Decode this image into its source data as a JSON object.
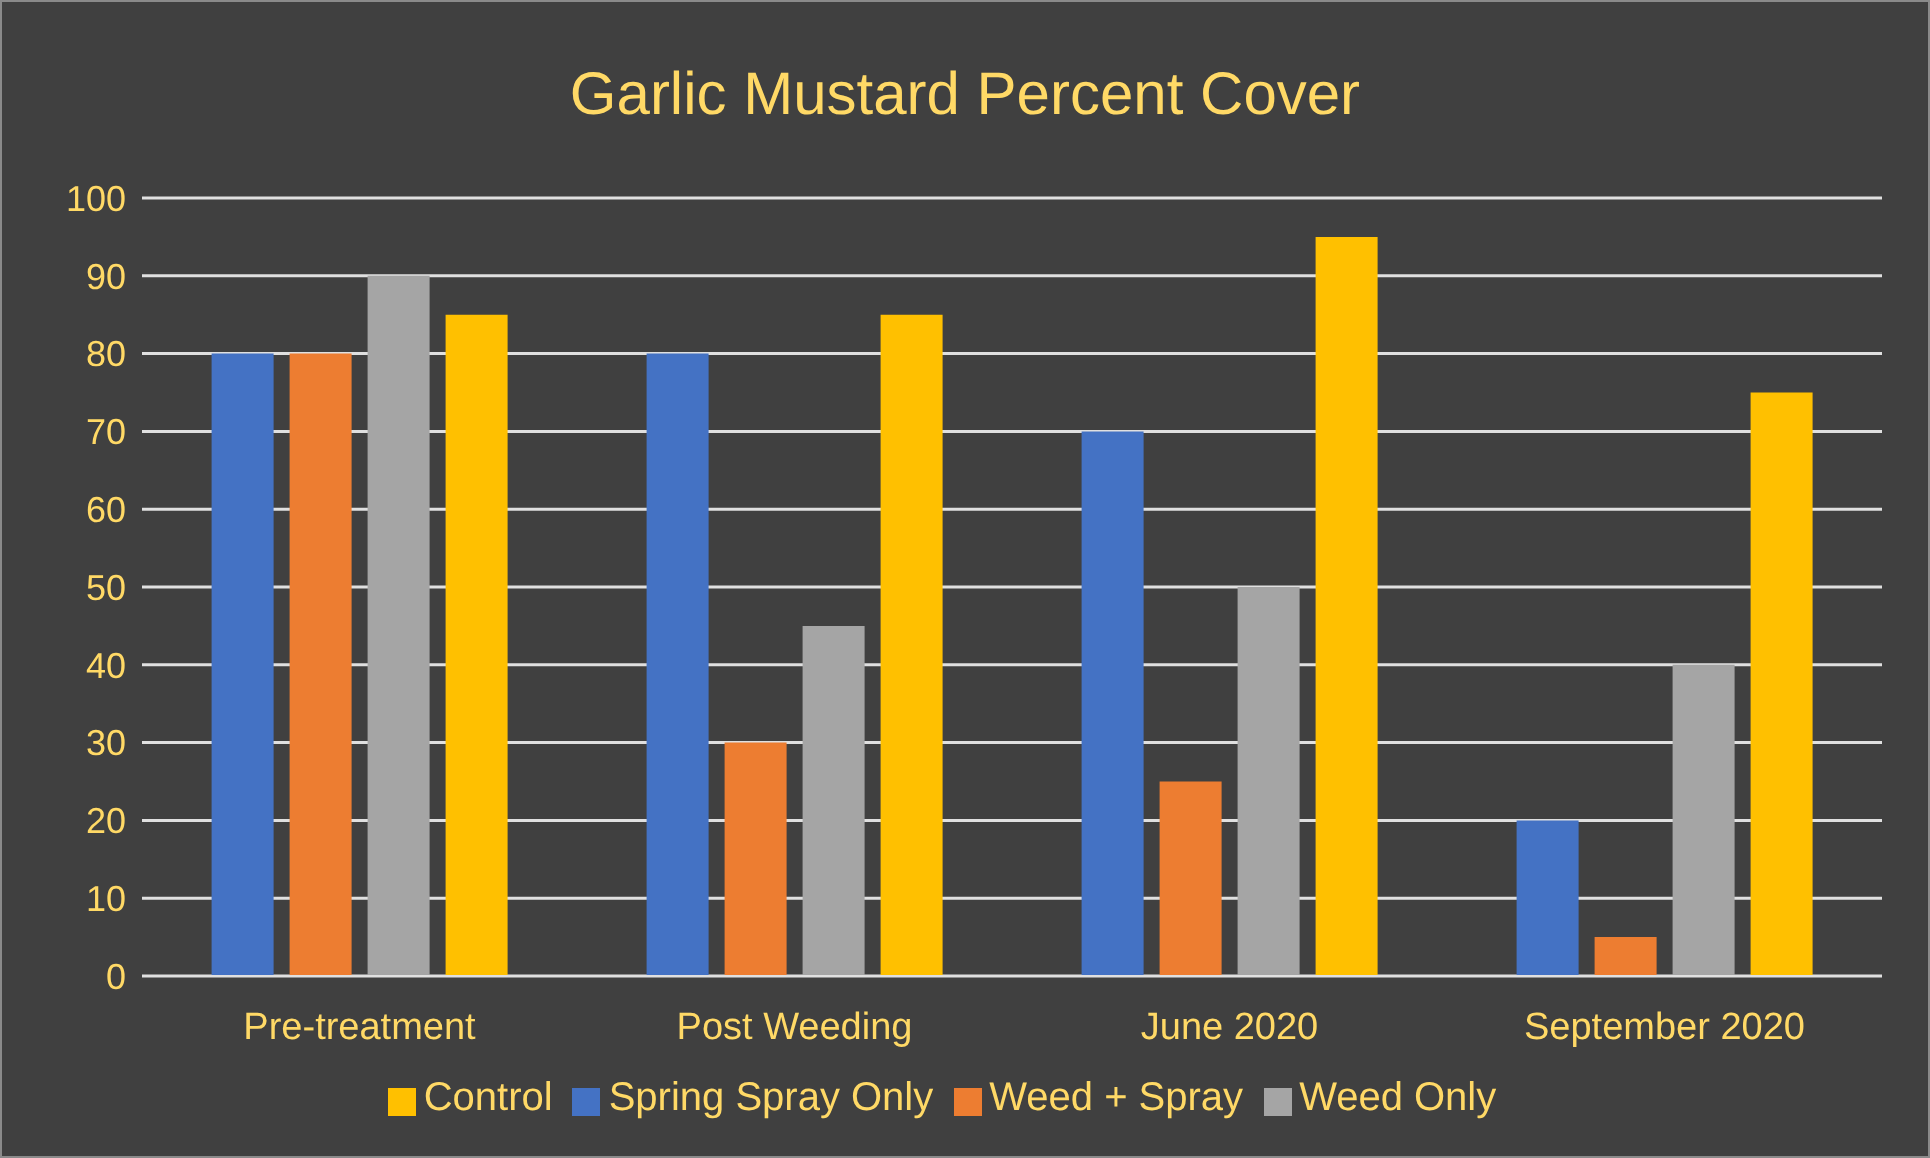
{
  "chart_data": {
    "type": "bar",
    "title": "Garlic Mustard Percent Cover",
    "categories": [
      "Pre-treatment",
      "Post Weeding",
      "June 2020",
      "September 2020"
    ],
    "series": [
      {
        "name": "Spring Spray Only",
        "color": "#4472c4",
        "values": [
          80,
          80,
          70,
          20
        ]
      },
      {
        "name": "Weed + Spray",
        "color": "#ed7d31",
        "values": [
          80,
          30,
          25,
          5
        ]
      },
      {
        "name": "Weed Only",
        "color": "#a5a5a5",
        "values": [
          90,
          45,
          50,
          40
        ]
      },
      {
        "name": "Control",
        "color": "#ffc000",
        "values": [
          85,
          85,
          95,
          75
        ]
      }
    ],
    "ylim": [
      0,
      100
    ],
    "yticks": [
      0,
      10,
      20,
      30,
      40,
      50,
      60,
      70,
      80,
      90,
      100
    ],
    "grid": "y",
    "legend": "bottom"
  }
}
